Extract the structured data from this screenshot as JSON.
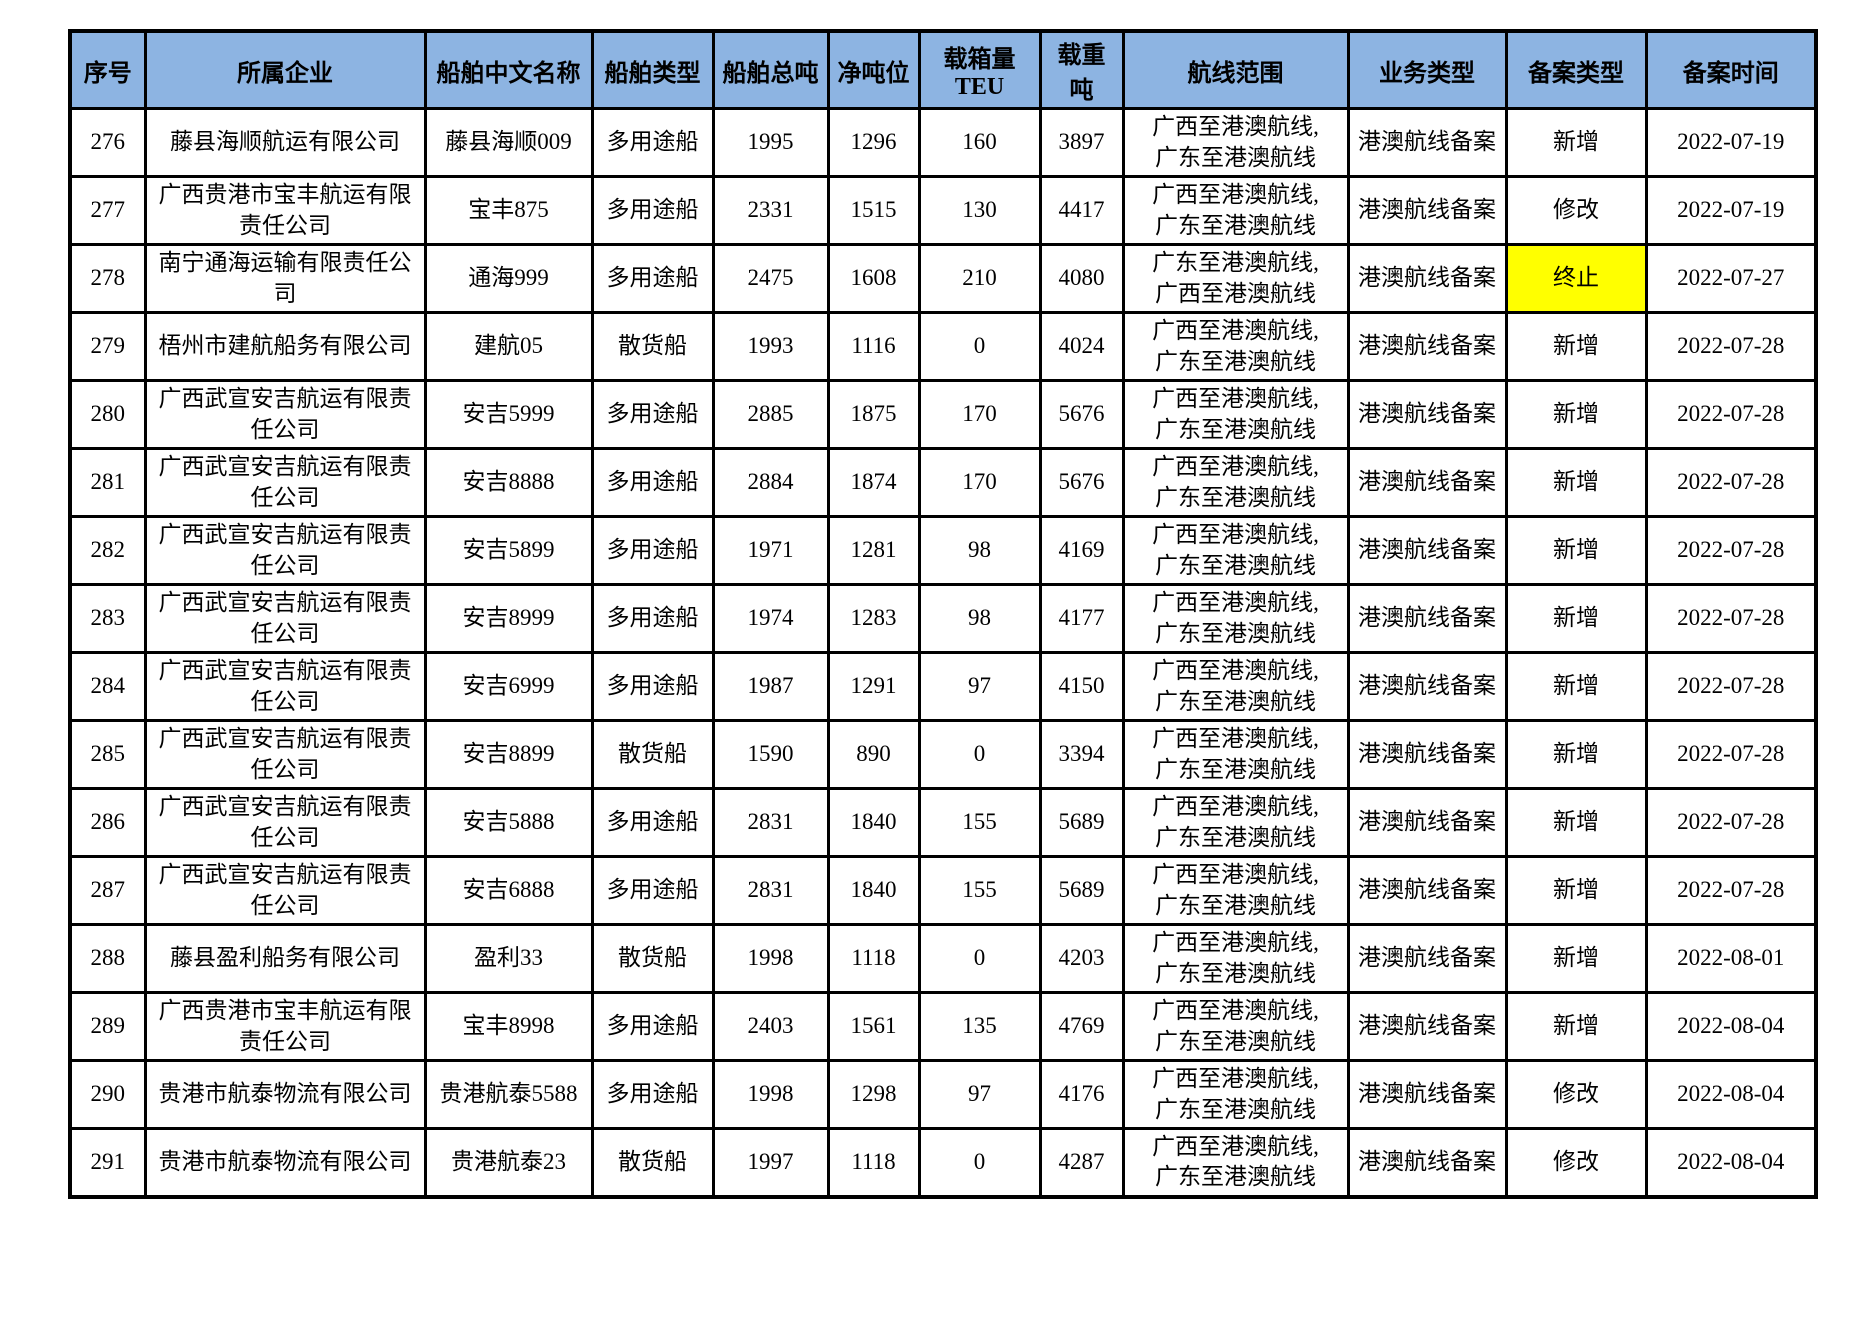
{
  "colors": {
    "header_bg": "#8db4e2",
    "highlight_bg": "#ffff00",
    "border": "#000000",
    "page_bg": "#ffffff"
  },
  "table": {
    "columns": [
      {
        "key": "index",
        "label": "序号"
      },
      {
        "key": "company",
        "label": "所属企业"
      },
      {
        "key": "ship_name",
        "label": "船舶中文名称"
      },
      {
        "key": "ship_type",
        "label": "船舶类型"
      },
      {
        "key": "gross_tonnage",
        "label": "船舶总吨"
      },
      {
        "key": "net_tonnage",
        "label": "净吨位"
      },
      {
        "key": "teu",
        "label": "载箱量TEU"
      },
      {
        "key": "deadweight",
        "label": "载重吨"
      },
      {
        "key": "route",
        "label": "航线范围"
      },
      {
        "key": "business_type",
        "label": "业务类型"
      },
      {
        "key": "filing_type",
        "label": "备案类型"
      },
      {
        "key": "filing_date",
        "label": "备案时间"
      }
    ],
    "rows": [
      {
        "index": "276",
        "company": "藤县海顺航运有限公司",
        "ship_name": "藤县海顺009",
        "ship_type": "多用途船",
        "gross_tonnage": "1995",
        "net_tonnage": "1296",
        "teu": "160",
        "deadweight": "3897",
        "route": "广西至港澳航线,\n广东至港澳航线",
        "business_type": "港澳航线备案",
        "filing_type": "新增",
        "filing_date": "2022-07-19",
        "filing_type_highlight": false
      },
      {
        "index": "277",
        "company": "广西贵港市宝丰航运有限责任公司",
        "ship_name": "宝丰875",
        "ship_type": "多用途船",
        "gross_tonnage": "2331",
        "net_tonnage": "1515",
        "teu": "130",
        "deadweight": "4417",
        "route": "广西至港澳航线,\n广东至港澳航线",
        "business_type": "港澳航线备案",
        "filing_type": "修改",
        "filing_date": "2022-07-19",
        "filing_type_highlight": false
      },
      {
        "index": "278",
        "company": "南宁通海运输有限责任公司",
        "ship_name": "通海999",
        "ship_type": "多用途船",
        "gross_tonnage": "2475",
        "net_tonnage": "1608",
        "teu": "210",
        "deadweight": "4080",
        "route": "广东至港澳航线,\n广西至港澳航线",
        "business_type": "港澳航线备案",
        "filing_type": "终止",
        "filing_date": "2022-07-27",
        "filing_type_highlight": true
      },
      {
        "index": "279",
        "company": "梧州市建航船务有限公司",
        "ship_name": "建航05",
        "ship_type": "散货船",
        "gross_tonnage": "1993",
        "net_tonnage": "1116",
        "teu": "0",
        "deadweight": "4024",
        "route": "广西至港澳航线,\n广东至港澳航线",
        "business_type": "港澳航线备案",
        "filing_type": "新增",
        "filing_date": "2022-07-28",
        "filing_type_highlight": false
      },
      {
        "index": "280",
        "company": "广西武宣安吉航运有限责任公司",
        "ship_name": "安吉5999",
        "ship_type": "多用途船",
        "gross_tonnage": "2885",
        "net_tonnage": "1875",
        "teu": "170",
        "deadweight": "5676",
        "route": "广西至港澳航线,\n广东至港澳航线",
        "business_type": "港澳航线备案",
        "filing_type": "新增",
        "filing_date": "2022-07-28",
        "filing_type_highlight": false
      },
      {
        "index": "281",
        "company": "广西武宣安吉航运有限责任公司",
        "ship_name": "安吉8888",
        "ship_type": "多用途船",
        "gross_tonnage": "2884",
        "net_tonnage": "1874",
        "teu": "170",
        "deadweight": "5676",
        "route": "广西至港澳航线,\n广东至港澳航线",
        "business_type": "港澳航线备案",
        "filing_type": "新增",
        "filing_date": "2022-07-28",
        "filing_type_highlight": false
      },
      {
        "index": "282",
        "company": "广西武宣安吉航运有限责任公司",
        "ship_name": "安吉5899",
        "ship_type": "多用途船",
        "gross_tonnage": "1971",
        "net_tonnage": "1281",
        "teu": "98",
        "deadweight": "4169",
        "route": "广西至港澳航线,\n广东至港澳航线",
        "business_type": "港澳航线备案",
        "filing_type": "新增",
        "filing_date": "2022-07-28",
        "filing_type_highlight": false
      },
      {
        "index": "283",
        "company": "广西武宣安吉航运有限责任公司",
        "ship_name": "安吉8999",
        "ship_type": "多用途船",
        "gross_tonnage": "1974",
        "net_tonnage": "1283",
        "teu": "98",
        "deadweight": "4177",
        "route": "广西至港澳航线,\n广东至港澳航线",
        "business_type": "港澳航线备案",
        "filing_type": "新增",
        "filing_date": "2022-07-28",
        "filing_type_highlight": false
      },
      {
        "index": "284",
        "company": "广西武宣安吉航运有限责任公司",
        "ship_name": "安吉6999",
        "ship_type": "多用途船",
        "gross_tonnage": "1987",
        "net_tonnage": "1291",
        "teu": "97",
        "deadweight": "4150",
        "route": "广西至港澳航线,\n广东至港澳航线",
        "business_type": "港澳航线备案",
        "filing_type": "新增",
        "filing_date": "2022-07-28",
        "filing_type_highlight": false
      },
      {
        "index": "285",
        "company": "广西武宣安吉航运有限责任公司",
        "ship_name": "安吉8899",
        "ship_type": "散货船",
        "gross_tonnage": "1590",
        "net_tonnage": "890",
        "teu": "0",
        "deadweight": "3394",
        "route": "广西至港澳航线,\n广东至港澳航线",
        "business_type": "港澳航线备案",
        "filing_type": "新增",
        "filing_date": "2022-07-28",
        "filing_type_highlight": false
      },
      {
        "index": "286",
        "company": "广西武宣安吉航运有限责任公司",
        "ship_name": "安吉5888",
        "ship_type": "多用途船",
        "gross_tonnage": "2831",
        "net_tonnage": "1840",
        "teu": "155",
        "deadweight": "5689",
        "route": "广西至港澳航线,\n广东至港澳航线",
        "business_type": "港澳航线备案",
        "filing_type": "新增",
        "filing_date": "2022-07-28",
        "filing_type_highlight": false
      },
      {
        "index": "287",
        "company": "广西武宣安吉航运有限责任公司",
        "ship_name": "安吉6888",
        "ship_type": "多用途船",
        "gross_tonnage": "2831",
        "net_tonnage": "1840",
        "teu": "155",
        "deadweight": "5689",
        "route": "广西至港澳航线,\n广东至港澳航线",
        "business_type": "港澳航线备案",
        "filing_type": "新增",
        "filing_date": "2022-07-28",
        "filing_type_highlight": false
      },
      {
        "index": "288",
        "company": "藤县盈利船务有限公司",
        "ship_name": "盈利33",
        "ship_type": "散货船",
        "gross_tonnage": "1998",
        "net_tonnage": "1118",
        "teu": "0",
        "deadweight": "4203",
        "route": "广西至港澳航线,\n广东至港澳航线",
        "business_type": "港澳航线备案",
        "filing_type": "新增",
        "filing_date": "2022-08-01",
        "filing_type_highlight": false
      },
      {
        "index": "289",
        "company": "广西贵港市宝丰航运有限责任公司",
        "ship_name": "宝丰8998",
        "ship_type": "多用途船",
        "gross_tonnage": "2403",
        "net_tonnage": "1561",
        "teu": "135",
        "deadweight": "4769",
        "route": "广西至港澳航线,\n广东至港澳航线",
        "business_type": "港澳航线备案",
        "filing_type": "新增",
        "filing_date": "2022-08-04",
        "filing_type_highlight": false
      },
      {
        "index": "290",
        "company": "贵港市航泰物流有限公司",
        "ship_name": "贵港航泰5588",
        "ship_type": "多用途船",
        "gross_tonnage": "1998",
        "net_tonnage": "1298",
        "teu": "97",
        "deadweight": "4176",
        "route": "广西至港澳航线,\n广东至港澳航线",
        "business_type": "港澳航线备案",
        "filing_type": "修改",
        "filing_date": "2022-08-04",
        "filing_type_highlight": false
      },
      {
        "index": "291",
        "company": "贵港市航泰物流有限公司",
        "ship_name": "贵港航泰23",
        "ship_type": "散货船",
        "gross_tonnage": "1997",
        "net_tonnage": "1118",
        "teu": "0",
        "deadweight": "4287",
        "route": "广西至港澳航线,\n广东至港澳航线",
        "business_type": "港澳航线备案",
        "filing_type": "修改",
        "filing_date": "2022-08-04",
        "filing_type_highlight": false
      }
    ]
  }
}
